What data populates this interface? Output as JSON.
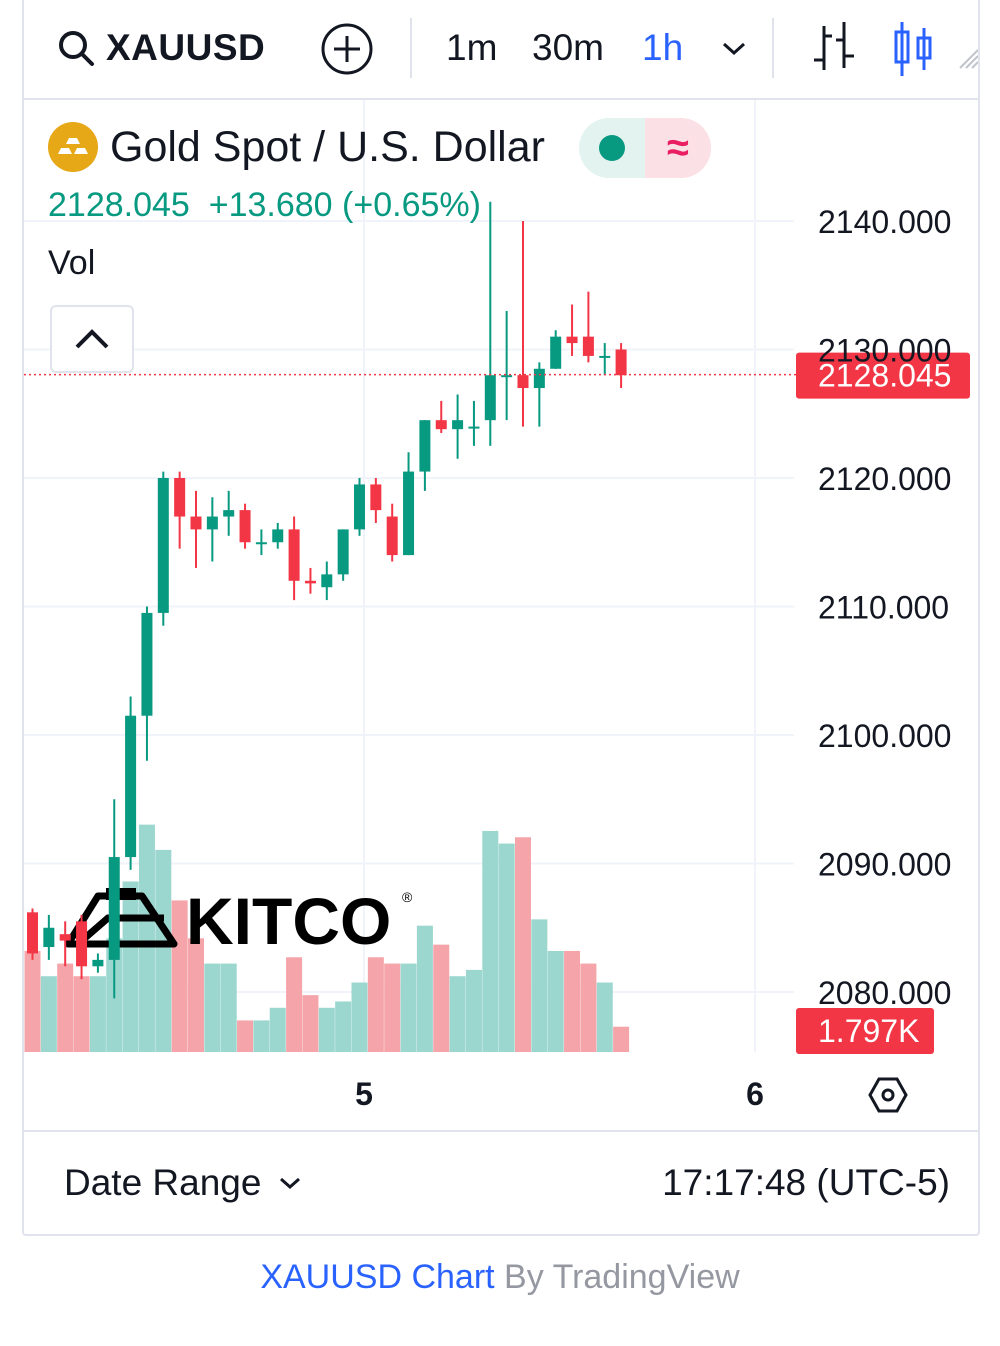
{
  "toolbar": {
    "symbol": "XAUUSD",
    "timeframes": [
      "1m",
      "30m",
      "1h"
    ],
    "active_timeframe": "1h",
    "icons": [
      "search-icon",
      "add-circle-icon",
      "chevron-down-icon",
      "bar-chart-icon",
      "candles-icon",
      "fullscreen-icon"
    ]
  },
  "legend": {
    "title": "Gold Spot / U.S. Dollar",
    "price": "2128.045",
    "change": "+13.680",
    "change_pct": "(+0.65%)",
    "volume_label": "Vol"
  },
  "price_axis": {
    "labels": [
      "2140.000",
      "2130.000",
      "2120.000",
      "2110.000",
      "2100.000",
      "2090.000",
      "2080.000"
    ],
    "last_price_tag": "2128.045",
    "volume_tag": "1.797K"
  },
  "time_axis": {
    "labels": [
      "5",
      "6"
    ]
  },
  "watermark": "KITCO",
  "bottom_bar": {
    "date_range_label": "Date Range",
    "clock": "17:17:48 (UTC-5)"
  },
  "credit": {
    "link": "XAUUSD Chart",
    "rest": " By TradingView"
  },
  "colors": {
    "up": "#089981",
    "down": "#f23645",
    "up_vol": "#9bd6cf",
    "down_vol": "#f5a4a9",
    "accent": "#2962ff"
  },
  "chart_data": {
    "type": "candlestick",
    "symbol": "XAUUSD",
    "interval": "1h",
    "ylim": [
      2076,
      2145
    ],
    "last_price": 2128.045,
    "candles": [
      {
        "o": 2086.2,
        "h": 2086.5,
        "l": 2082.5,
        "c": 2083.0,
        "v": 0.8
      },
      {
        "o": 2083.5,
        "h": 2086.0,
        "l": 2082.5,
        "c": 2085.0,
        "v": 0.6
      },
      {
        "o": 2084.5,
        "h": 2085.5,
        "l": 2082.0,
        "c": 2084.0,
        "v": 0.7
      },
      {
        "o": 2085.5,
        "h": 2086.0,
        "l": 2081.0,
        "c": 2082.0,
        "v": 0.6
      },
      {
        "o": 2082.0,
        "h": 2083.0,
        "l": 2081.5,
        "c": 2082.5,
        "v": 0.6
      },
      {
        "o": 2082.5,
        "h": 2095.0,
        "l": 2079.5,
        "c": 2090.5,
        "v": 0.9
      },
      {
        "o": 2090.5,
        "h": 2103.0,
        "l": 2089.5,
        "c": 2101.5,
        "v": 1.35
      },
      {
        "o": 2101.5,
        "h": 2110.0,
        "l": 2098.0,
        "c": 2109.5,
        "v": 1.8
      },
      {
        "o": 2109.5,
        "h": 2120.5,
        "l": 2108.5,
        "c": 2120.0,
        "v": 1.6
      },
      {
        "o": 2120.0,
        "h": 2120.5,
        "l": 2114.5,
        "c": 2117.0,
        "v": 1.2
      },
      {
        "o": 2117.0,
        "h": 2119.0,
        "l": 2113.0,
        "c": 2116.0,
        "v": 0.9
      },
      {
        "o": 2116.0,
        "h": 2118.5,
        "l": 2113.5,
        "c": 2117.0,
        "v": 0.7
      },
      {
        "o": 2117.0,
        "h": 2119.0,
        "l": 2115.5,
        "c": 2117.5,
        "v": 0.7
      },
      {
        "o": 2117.5,
        "h": 2118.0,
        "l": 2114.5,
        "c": 2115.0,
        "v": 0.25
      },
      {
        "o": 2115.0,
        "h": 2116.0,
        "l": 2114.0,
        "c": 2115.0,
        "v": 0.25
      },
      {
        "o": 2115.0,
        "h": 2116.5,
        "l": 2114.5,
        "c": 2116.0,
        "v": 0.35
      },
      {
        "o": 2116.0,
        "h": 2117.0,
        "l": 2110.5,
        "c": 2112.0,
        "v": 0.75
      },
      {
        "o": 2112.0,
        "h": 2113.0,
        "l": 2111.0,
        "c": 2111.8,
        "v": 0.45
      },
      {
        "o": 2111.5,
        "h": 2113.5,
        "l": 2110.5,
        "c": 2112.5,
        "v": 0.35
      },
      {
        "o": 2112.5,
        "h": 2116.0,
        "l": 2112.0,
        "c": 2116.0,
        "v": 0.4
      },
      {
        "o": 2116.0,
        "h": 2120.0,
        "l": 2115.5,
        "c": 2119.5,
        "v": 0.55
      },
      {
        "o": 2119.5,
        "h": 2120.0,
        "l": 2116.5,
        "c": 2117.5,
        "v": 0.75
      },
      {
        "o": 2117.0,
        "h": 2118.0,
        "l": 2113.5,
        "c": 2114.0,
        "v": 0.7
      },
      {
        "o": 2114.0,
        "h": 2122.0,
        "l": 2114.0,
        "c": 2120.5,
        "v": 0.7
      },
      {
        "o": 2120.5,
        "h": 2124.5,
        "l": 2119.0,
        "c": 2124.5,
        "v": 1.0
      },
      {
        "o": 2124.5,
        "h": 2126.0,
        "l": 2123.5,
        "c": 2123.8,
        "v": 0.85
      },
      {
        "o": 2123.8,
        "h": 2126.5,
        "l": 2121.5,
        "c": 2124.5,
        "v": 0.6
      },
      {
        "o": 2124.0,
        "h": 2126.0,
        "l": 2122.5,
        "c": 2124.0,
        "v": 0.65
      },
      {
        "o": 2124.5,
        "h": 2141.5,
        "l": 2122.5,
        "c": 2128.0,
        "v": 1.75
      },
      {
        "o": 2128.0,
        "h": 2133.0,
        "l": 2124.5,
        "c": 2128.0,
        "v": 1.65
      },
      {
        "o": 2128.0,
        "h": 2140.0,
        "l": 2124.0,
        "c": 2127.0,
        "v": 1.7
      },
      {
        "o": 2127.0,
        "h": 2129.0,
        "l": 2124.0,
        "c": 2128.5,
        "v": 1.05
      },
      {
        "o": 2128.5,
        "h": 2131.5,
        "l": 2128.5,
        "c": 2131.0,
        "v": 0.8
      },
      {
        "o": 2131.0,
        "h": 2133.5,
        "l": 2129.5,
        "c": 2130.5,
        "v": 0.8
      },
      {
        "o": 2131.0,
        "h": 2134.5,
        "l": 2129.0,
        "c": 2129.5,
        "v": 0.7
      },
      {
        "o": 2129.5,
        "h": 2130.5,
        "l": 2128.0,
        "c": 2129.5,
        "v": 0.55
      },
      {
        "o": 2130.0,
        "h": 2130.5,
        "l": 2127.0,
        "c": 2128.0,
        "v": 0.2
      }
    ]
  }
}
